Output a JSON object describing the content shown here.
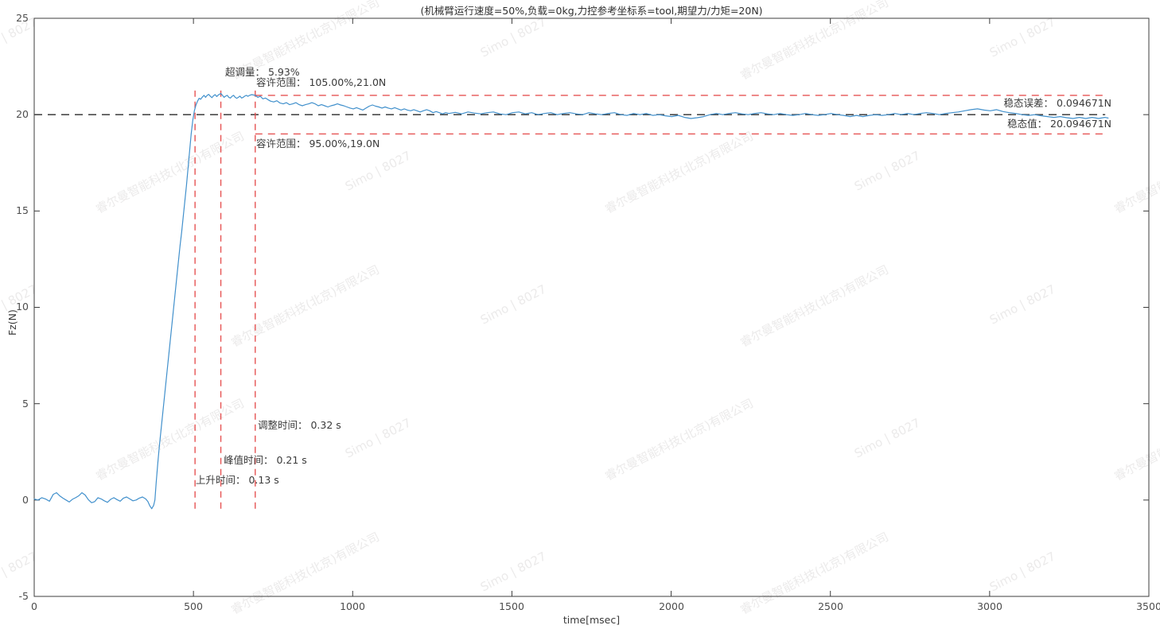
{
  "title": "(机械臂运行速度=50%,负载=0kg,力控参考坐标系=tool,期望力/力矩=20N)",
  "axes": {
    "xlabel": "time[msec]",
    "ylabel": "Fz(N)",
    "x_ticks": [
      "0",
      "500",
      "1000",
      "1500",
      "2000",
      "2500",
      "3000",
      "3500"
    ],
    "y_ticks": [
      "-5",
      "0",
      "5",
      "10",
      "15",
      "20",
      "25"
    ]
  },
  "annotations": {
    "overshoot": "超调量： 5.93%",
    "tolerance_upper": "容许范围： 105.00%,21.0N",
    "tolerance_lower": "容许范围： 95.00%,19.0N",
    "steady_error": "稳态误差： 0.094671N",
    "steady_value": "稳态值： 20.094671N",
    "settling_time": "调整时间： 0.32 s",
    "peak_time": "峰值时间： 0.21 s",
    "rise_time": "上升时间： 0.13 s"
  },
  "watermark": {
    "text1": "Simo | 8027",
    "text2": "睿尔曼智能科技(北京)有限公司"
  },
  "colors": {
    "line": "#4190cc",
    "tolerance": "#e65353",
    "target": "#4a4a4a",
    "spine": "#3c3c3c"
  },
  "chart_data": {
    "type": "line",
    "title": "(机械臂运行速度=50%,负载=0kg,力控参考坐标系=tool,期望力/力矩=20N)",
    "xlabel": "time[msec]",
    "ylabel": "Fz(N)",
    "xlim": [
      0,
      3500
    ],
    "ylim": [
      -5,
      25
    ],
    "x_tick_values": [
      0,
      500,
      1000,
      1500,
      2000,
      2500,
      3000,
      3500
    ],
    "y_tick_values": [
      -5,
      0,
      5,
      10,
      15,
      20,
      25
    ],
    "grid": false,
    "legend": "none",
    "target_line": {
      "y": 20,
      "x_range": [
        0,
        3363
      ]
    },
    "tolerance_lines": [
      {
        "name": "upper",
        "y": 21.0,
        "x_range": [
          694,
          3363
        ]
      },
      {
        "name": "lower",
        "y": 19.0,
        "x_range": [
          694,
          3363
        ]
      }
    ],
    "event_lines": [
      {
        "name": "rise-time",
        "x": 505,
        "value_s": 0.13
      },
      {
        "name": "peak-time",
        "x": 586,
        "value_s": 0.21
      },
      {
        "name": "settling-time",
        "x": 694,
        "value_s": 0.32
      }
    ],
    "event_y_range": [
      -0.45,
      21.25
    ],
    "metrics": {
      "overshoot_pct": 5.93,
      "rise_time_s": 0.13,
      "peak_time_s": 0.21,
      "settling_time_s": 0.32,
      "steady_state_error_N": 0.094671,
      "steady_state_value_N": 20.094671,
      "tolerance_upper": "105.00%,21.0N",
      "tolerance_lower": "95.00%,19.0N",
      "desired_force_N": 20
    },
    "series": [
      {
        "name": "Fz",
        "points": [
          [
            0,
            0.05
          ],
          [
            12,
            0.0
          ],
          [
            24,
            0.12
          ],
          [
            36,
            0.05
          ],
          [
            48,
            -0.06
          ],
          [
            60,
            0.3
          ],
          [
            70,
            0.38
          ],
          [
            80,
            0.22
          ],
          [
            90,
            0.1
          ],
          [
            100,
            0.0
          ],
          [
            110,
            -0.1
          ],
          [
            120,
            0.04
          ],
          [
            130,
            0.12
          ],
          [
            140,
            0.22
          ],
          [
            150,
            0.38
          ],
          [
            160,
            0.26
          ],
          [
            170,
            0.02
          ],
          [
            180,
            -0.14
          ],
          [
            190,
            -0.08
          ],
          [
            200,
            0.12
          ],
          [
            210,
            0.06
          ],
          [
            220,
            -0.04
          ],
          [
            230,
            -0.12
          ],
          [
            240,
            0.04
          ],
          [
            250,
            0.12
          ],
          [
            260,
            0.02
          ],
          [
            270,
            -0.06
          ],
          [
            280,
            0.1
          ],
          [
            290,
            0.16
          ],
          [
            300,
            0.06
          ],
          [
            310,
            -0.04
          ],
          [
            320,
            0.0
          ],
          [
            330,
            0.1
          ],
          [
            340,
            0.16
          ],
          [
            350,
            0.06
          ],
          [
            357,
            -0.08
          ],
          [
            363,
            -0.3
          ],
          [
            369,
            -0.45
          ],
          [
            375,
            -0.28
          ],
          [
            379,
            0.0
          ],
          [
            383,
            0.9
          ],
          [
            388,
            1.9
          ],
          [
            393,
            2.8
          ],
          [
            398,
            3.6
          ],
          [
            403,
            4.4
          ],
          [
            408,
            5.2
          ],
          [
            413,
            6.0
          ],
          [
            418,
            6.8
          ],
          [
            423,
            7.6
          ],
          [
            428,
            8.4
          ],
          [
            433,
            9.2
          ],
          [
            438,
            10.0
          ],
          [
            443,
            10.8
          ],
          [
            448,
            11.6
          ],
          [
            453,
            12.4
          ],
          [
            458,
            13.2
          ],
          [
            463,
            13.9
          ],
          [
            468,
            14.7
          ],
          [
            473,
            15.5
          ],
          [
            478,
            16.3
          ],
          [
            483,
            17.2
          ],
          [
            488,
            18.1
          ],
          [
            493,
            19.0
          ],
          [
            498,
            19.7
          ],
          [
            503,
            20.2
          ],
          [
            508,
            20.5
          ],
          [
            513,
            20.7
          ],
          [
            518,
            20.85
          ],
          [
            523,
            20.8
          ],
          [
            528,
            20.92
          ],
          [
            533,
            21.0
          ],
          [
            538,
            20.9
          ],
          [
            543,
            21.0
          ],
          [
            548,
            21.05
          ],
          [
            553,
            20.95
          ],
          [
            558,
            20.88
          ],
          [
            563,
            20.98
          ],
          [
            568,
            21.04
          ],
          [
            573,
            20.94
          ],
          [
            578,
            21.02
          ],
          [
            586,
            21.1
          ],
          [
            591,
            21.0
          ],
          [
            596,
            20.9
          ],
          [
            601,
            20.96
          ],
          [
            606,
            21.0
          ],
          [
            611,
            20.9
          ],
          [
            616,
            20.86
          ],
          [
            621,
            20.95
          ],
          [
            626,
            21.0
          ],
          [
            631,
            20.9
          ],
          [
            636,
            20.85
          ],
          [
            641,
            20.9
          ],
          [
            646,
            20.96
          ],
          [
            651,
            20.86
          ],
          [
            656,
            20.9
          ],
          [
            661,
            20.96
          ],
          [
            666,
            21.0
          ],
          [
            671,
            20.95
          ],
          [
            676,
            21.0
          ],
          [
            683,
            21.04
          ],
          [
            694,
            21.0
          ],
          [
            702,
            20.9
          ],
          [
            710,
            20.95
          ],
          [
            718,
            20.82
          ],
          [
            726,
            20.86
          ],
          [
            734,
            20.78
          ],
          [
            742,
            20.7
          ],
          [
            752,
            20.66
          ],
          [
            762,
            20.72
          ],
          [
            772,
            20.6
          ],
          [
            782,
            20.56
          ],
          [
            792,
            20.62
          ],
          [
            802,
            20.52
          ],
          [
            812,
            20.56
          ],
          [
            822,
            20.62
          ],
          [
            832,
            20.52
          ],
          [
            842,
            20.46
          ],
          [
            852,
            20.52
          ],
          [
            862,
            20.56
          ],
          [
            872,
            20.62
          ],
          [
            882,
            20.56
          ],
          [
            892,
            20.46
          ],
          [
            902,
            20.52
          ],
          [
            912,
            20.46
          ],
          [
            922,
            20.4
          ],
          [
            932,
            20.46
          ],
          [
            942,
            20.5
          ],
          [
            952,
            20.56
          ],
          [
            962,
            20.5
          ],
          [
            972,
            20.46
          ],
          [
            982,
            20.4
          ],
          [
            992,
            20.34
          ],
          [
            1002,
            20.3
          ],
          [
            1012,
            20.36
          ],
          [
            1022,
            20.3
          ],
          [
            1032,
            20.24
          ],
          [
            1042,
            20.34
          ],
          [
            1052,
            20.44
          ],
          [
            1062,
            20.5
          ],
          [
            1072,
            20.44
          ],
          [
            1082,
            20.4
          ],
          [
            1092,
            20.34
          ],
          [
            1102,
            20.4
          ],
          [
            1112,
            20.34
          ],
          [
            1122,
            20.3
          ],
          [
            1132,
            20.36
          ],
          [
            1142,
            20.3
          ],
          [
            1152,
            20.24
          ],
          [
            1162,
            20.3
          ],
          [
            1172,
            20.24
          ],
          [
            1182,
            20.2
          ],
          [
            1192,
            20.26
          ],
          [
            1202,
            20.2
          ],
          [
            1212,
            20.14
          ],
          [
            1222,
            20.2
          ],
          [
            1232,
            20.26
          ],
          [
            1242,
            20.2
          ],
          [
            1252,
            20.1
          ],
          [
            1262,
            20.16
          ],
          [
            1272,
            20.1
          ],
          [
            1282,
            20.04
          ],
          [
            1292,
            20.1
          ],
          [
            1302,
            20.06
          ],
          [
            1322,
            20.12
          ],
          [
            1342,
            20.04
          ],
          [
            1362,
            20.14
          ],
          [
            1382,
            20.08
          ],
          [
            1402,
            20.04
          ],
          [
            1422,
            20.1
          ],
          [
            1442,
            20.14
          ],
          [
            1462,
            20.04
          ],
          [
            1482,
            20.0
          ],
          [
            1502,
            20.1
          ],
          [
            1522,
            20.14
          ],
          [
            1542,
            20.04
          ],
          [
            1562,
            20.1
          ],
          [
            1582,
            20.0
          ],
          [
            1602,
            20.06
          ],
          [
            1622,
            20.1
          ],
          [
            1642,
            20.0
          ],
          [
            1662,
            20.06
          ],
          [
            1682,
            20.1
          ],
          [
            1702,
            20.04
          ],
          [
            1722,
            20.0
          ],
          [
            1742,
            20.1
          ],
          [
            1762,
            20.04
          ],
          [
            1782,
            20.0
          ],
          [
            1802,
            20.06
          ],
          [
            1822,
            20.1
          ],
          [
            1842,
            20.0
          ],
          [
            1862,
            19.96
          ],
          [
            1882,
            20.06
          ],
          [
            1902,
            20.0
          ],
          [
            1922,
            20.06
          ],
          [
            1942,
            19.96
          ],
          [
            1962,
            20.0
          ],
          [
            1982,
            19.94
          ],
          [
            2002,
            19.9
          ],
          [
            2022,
            19.96
          ],
          [
            2042,
            19.86
          ],
          [
            2062,
            19.8
          ],
          [
            2082,
            19.84
          ],
          [
            2102,
            19.9
          ],
          [
            2122,
            20.0
          ],
          [
            2142,
            20.06
          ],
          [
            2162,
            20.0
          ],
          [
            2182,
            20.06
          ],
          [
            2202,
            20.1
          ],
          [
            2222,
            20.04
          ],
          [
            2242,
            20.0
          ],
          [
            2262,
            20.06
          ],
          [
            2282,
            20.1
          ],
          [
            2302,
            20.04
          ],
          [
            2322,
            20.0
          ],
          [
            2342,
            20.06
          ],
          [
            2362,
            20.0
          ],
          [
            2382,
            19.96
          ],
          [
            2402,
            20.0
          ],
          [
            2422,
            20.06
          ],
          [
            2442,
            20.0
          ],
          [
            2462,
            19.96
          ],
          [
            2482,
            20.0
          ],
          [
            2502,
            20.06
          ],
          [
            2522,
            20.0
          ],
          [
            2542,
            19.96
          ],
          [
            2562,
            19.9
          ],
          [
            2582,
            19.96
          ],
          [
            2602,
            19.9
          ],
          [
            2622,
            19.96
          ],
          [
            2642,
            20.0
          ],
          [
            2662,
            19.96
          ],
          [
            2682,
            20.0
          ],
          [
            2702,
            20.06
          ],
          [
            2722,
            20.0
          ],
          [
            2742,
            20.06
          ],
          [
            2762,
            20.0
          ],
          [
            2782,
            20.06
          ],
          [
            2802,
            20.1
          ],
          [
            2822,
            20.06
          ],
          [
            2842,
            20.0
          ],
          [
            2862,
            20.06
          ],
          [
            2882,
            20.1
          ],
          [
            2902,
            20.14
          ],
          [
            2922,
            20.2
          ],
          [
            2942,
            20.26
          ],
          [
            2962,
            20.3
          ],
          [
            2982,
            20.24
          ],
          [
            3002,
            20.2
          ],
          [
            3022,
            20.26
          ],
          [
            3042,
            20.16
          ],
          [
            3062,
            20.1
          ],
          [
            3082,
            20.06
          ],
          [
            3102,
            20.0
          ],
          [
            3122,
            19.96
          ],
          [
            3142,
            20.0
          ],
          [
            3162,
            19.94
          ],
          [
            3182,
            19.9
          ],
          [
            3202,
            19.86
          ],
          [
            3222,
            19.9
          ],
          [
            3242,
            19.84
          ],
          [
            3262,
            19.8
          ],
          [
            3282,
            19.86
          ],
          [
            3302,
            19.8
          ],
          [
            3322,
            19.86
          ],
          [
            3342,
            19.8
          ],
          [
            3362,
            19.86
          ],
          [
            3372,
            19.82
          ]
        ]
      }
    ]
  }
}
